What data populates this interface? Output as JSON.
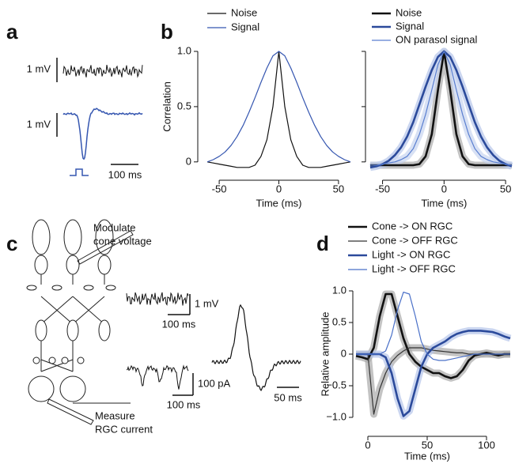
{
  "panel_labels": [
    "a",
    "b",
    "c",
    "d"
  ],
  "panel_a": {
    "top_scale": "1 mV",
    "bottom_scale": "1 mV",
    "time_scale": "100 ms"
  },
  "panel_c": {
    "modulate_label": [
      "Modulate",
      "cone voltage"
    ],
    "voltage_scale": "1 mV",
    "voltage_time_scale": "100 ms",
    "current_scale": "100 pA",
    "current_time_scale": "100 ms",
    "filter_time_scale": "50 ms",
    "measure_label": [
      "Measure",
      "RGC current"
    ]
  },
  "chart_data": [
    {
      "type": "line",
      "xlabel": "Time (ms)",
      "ylabel": "Correlation",
      "x": [
        -60,
        -55,
        -50,
        -45,
        -40,
        -35,
        -30,
        -25,
        -20,
        -15,
        -10,
        -5,
        0,
        5,
        10,
        15,
        20,
        25,
        30,
        35,
        40,
        45,
        50,
        55,
        60
      ],
      "series": [
        {
          "name": "Noise",
          "color": "#111111",
          "values": [
            0,
            -0.01,
            -0.02,
            -0.03,
            -0.04,
            -0.05,
            -0.05,
            -0.05,
            -0.03,
            0.05,
            0.2,
            0.5,
            1.0,
            0.5,
            0.2,
            0.05,
            -0.03,
            -0.05,
            -0.05,
            -0.05,
            -0.04,
            -0.03,
            -0.02,
            -0.01,
            0
          ]
        },
        {
          "name": "Signal",
          "color": "#3556b0",
          "values": [
            0,
            0.02,
            0.05,
            0.09,
            0.15,
            0.23,
            0.33,
            0.45,
            0.58,
            0.72,
            0.85,
            0.96,
            1.0,
            0.96,
            0.85,
            0.72,
            0.58,
            0.45,
            0.33,
            0.23,
            0.15,
            0.09,
            0.05,
            0.02,
            0
          ]
        }
      ],
      "xlim": [
        -60,
        60
      ],
      "ylim": [
        -0.08,
        1.05
      ],
      "xticks": [
        -50,
        0,
        50
      ],
      "yticks": [
        0,
        0.5,
        {
          "value": 1.0,
          "label": "1.0"
        }
      ]
    },
    {
      "type": "line",
      "xlabel": "Time (ms)",
      "x": [
        -60,
        -55,
        -50,
        -45,
        -40,
        -35,
        -30,
        -25,
        -20,
        -15,
        -10,
        -5,
        0,
        5,
        10,
        15,
        20,
        25,
        30,
        35,
        40,
        45,
        50,
        55
      ],
      "series": [
        {
          "name": "Noise",
          "color": "#111111",
          "values": [
            -0.03,
            -0.03,
            -0.03,
            -0.03,
            -0.03,
            -0.03,
            -0.03,
            -0.03,
            -0.02,
            0.05,
            0.25,
            0.65,
            1.0,
            0.65,
            0.25,
            0.05,
            -0.02,
            -0.03,
            -0.03,
            -0.03,
            -0.03,
            -0.03,
            -0.03,
            -0.03
          ]
        },
        {
          "name": "Signal",
          "color": "#2b4a9b",
          "values": [
            -0.05,
            -0.04,
            -0.02,
            0.01,
            0.06,
            0.13,
            0.23,
            0.36,
            0.52,
            0.68,
            0.83,
            0.95,
            1.0,
            0.95,
            0.83,
            0.68,
            0.52,
            0.36,
            0.23,
            0.13,
            0.06,
            0.01,
            -0.02,
            -0.04
          ]
        },
        {
          "name": "ON parasol signal",
          "color": "#5a7fd0",
          "values": [
            -0.03,
            -0.03,
            -0.02,
            -0.01,
            0.0,
            0.02,
            0.05,
            0.12,
            0.25,
            0.43,
            0.65,
            0.88,
            1.0,
            0.88,
            0.65,
            0.43,
            0.25,
            0.12,
            0.05,
            0.02,
            0.0,
            -0.01,
            -0.02,
            -0.03
          ]
        }
      ],
      "xlim": [
        -60,
        57
      ],
      "ylim": [
        -0.08,
        1.05
      ],
      "xticks": [
        -50,
        0,
        50
      ],
      "yticks": [
        0,
        0.5,
        1
      ]
    },
    {
      "type": "line",
      "xlabel": "Time (ms)",
      "ylabel": "Relative amplitude",
      "x": [
        -10,
        -5,
        0,
        5,
        10,
        15,
        20,
        25,
        30,
        35,
        40,
        45,
        50,
        55,
        60,
        65,
        70,
        75,
        80,
        85,
        90,
        95,
        100,
        105,
        110,
        115,
        120
      ],
      "series": [
        {
          "name": "Cone -> ON RGC",
          "color": "#111111",
          "values": [
            -0.03,
            -0.05,
            -0.08,
            0.1,
            0.6,
            0.95,
            0.95,
            0.6,
            0.25,
            0.0,
            -0.12,
            -0.2,
            -0.25,
            -0.3,
            -0.3,
            -0.35,
            -0.38,
            -0.35,
            -0.25,
            -0.1,
            -0.02,
            0.0,
            0.02,
            0.0,
            -0.02,
            0.0,
            0.0
          ]
        },
        {
          "name": "Cone -> OFF RGC",
          "color": "#333333",
          "values": [
            0.0,
            0.0,
            0.0,
            -0.95,
            -0.55,
            -0.3,
            -0.12,
            -0.02,
            0.05,
            0.1,
            0.1,
            0.1,
            0.08,
            0.06,
            0.05,
            0.04,
            0.03,
            0.02,
            0.02,
            0.0,
            0.0,
            0.0,
            0.0,
            0.0,
            0.0,
            0.0,
            0.0
          ]
        },
        {
          "name": "Light -> ON RGC",
          "color": "#2b4a9b",
          "values": [
            0,
            0,
            0,
            0,
            0,
            -0.05,
            -0.3,
            -0.7,
            -0.98,
            -0.9,
            -0.55,
            -0.2,
            0.0,
            0.1,
            0.15,
            0.2,
            0.27,
            0.32,
            0.35,
            0.37,
            0.37,
            0.37,
            0.36,
            0.35,
            0.32,
            0.28,
            0.25
          ]
        },
        {
          "name": "Light -> OFF RGC",
          "color": "#4a70c8",
          "values": [
            0,
            0,
            0,
            0,
            0,
            0.05,
            0.3,
            0.7,
            0.98,
            0.95,
            0.6,
            0.2,
            0.0,
            -0.08,
            -0.1,
            -0.1,
            -0.08,
            -0.06,
            -0.04,
            -0.02,
            0.0,
            0.0,
            0.0,
            0.0,
            0.0,
            0.0,
            0.0
          ]
        }
      ],
      "xlim": [
        -10,
        120
      ],
      "ylim": [
        -1.15,
        1.1
      ],
      "xticks": [
        0,
        50,
        100
      ],
      "yticks": [
        {
          "value": -1.0,
          "label": "−1.0"
        },
        {
          "value": -0.5,
          "label": "−0.5"
        },
        0,
        0.5,
        {
          "value": 1.0,
          "label": "1.0"
        }
      ]
    }
  ]
}
